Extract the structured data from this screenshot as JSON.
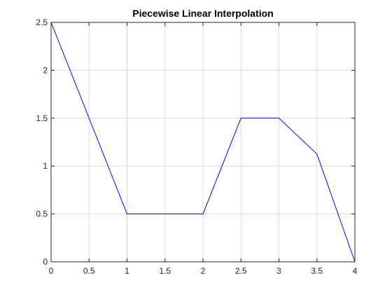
{
  "chart_data": {
    "type": "line",
    "title": "Piecewise Linear Interpolation",
    "xlabel": "",
    "ylabel": "",
    "xlim": [
      0,
      4
    ],
    "ylim": [
      0,
      2.5
    ],
    "xticks": [
      "0",
      "0.5",
      "1",
      "1.5",
      "2",
      "2.5",
      "3",
      "3.5",
      "4"
    ],
    "yticks": [
      "0",
      "0.5",
      "1",
      "1.5",
      "2",
      "2.5"
    ],
    "grid": true,
    "series": [
      {
        "x": [
          0,
          1,
          2,
          2.5,
          3,
          3.5,
          4
        ],
        "y": [
          2.5,
          0.5,
          0.5,
          1.5,
          1.5,
          1.125,
          0
        ],
        "color": "#0000ff"
      }
    ]
  }
}
